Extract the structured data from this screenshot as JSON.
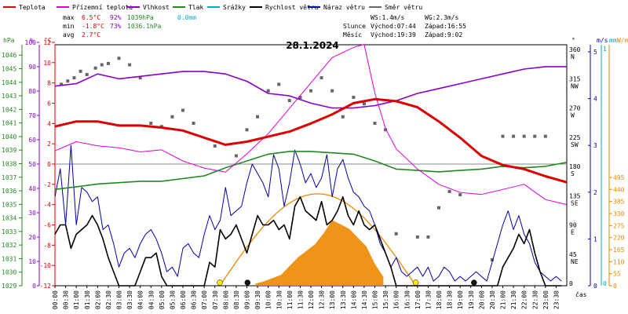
{
  "chart_data": {
    "type": "line",
    "title": "28.1.2024",
    "legend": [
      {
        "label": "Teplota",
        "color": "#dd0000"
      },
      {
        "label": "Přízemní teplota",
        "color": "#dd00dd"
      },
      {
        "label": "Vlhkost",
        "color": "#8800cc"
      },
      {
        "label": "Tlak",
        "color": "#228822"
      },
      {
        "label": "Srážky",
        "color": "#00aacc"
      },
      {
        "label": "Rychlost větru",
        "color": "#000000"
      },
      {
        "label": "Náraz větru",
        "color": "#0000aa"
      },
      {
        "label": "Směr větru",
        "color": "#666666"
      }
    ],
    "stats": {
      "max_label": "max",
      "max_temp": "6.5°C",
      "max_hum": "92%",
      "max_press": "1039hPa",
      "rain": "0.0mm",
      "min_label": "min",
      "min_temp": "-1.8°C",
      "min_hum": "73%",
      "min_press": "1036.1hPa",
      "avg_label": "avg",
      "avg_temp": "2.7°C",
      "ws": "WS:1.4m/s",
      "wg": "WG:2.3m/s",
      "sun_label": "Slunce",
      "sun_rise": "Východ:07:44",
      "sun_set": "Západ:16:55",
      "moon_label": "Měsíc",
      "moon_rise": "Východ:19:39",
      "moon_set": "Západ:9:02"
    },
    "axes": {
      "hpa_label": "hPa",
      "pct_label": "%",
      "temp_label": "°C",
      "deg_label": "°",
      "ms_label": "m/s",
      "mm_label": "mm",
      "wm2_label": "W/m²",
      "time_label": "čas",
      "hpa_ticks": [
        "1046",
        "1045",
        "1044",
        "1043",
        "1042",
        "1041",
        "1040",
        "1039",
        "1038",
        "1037",
        "1036",
        "1035",
        "1034",
        "1033",
        "1032",
        "1031",
        "1030",
        "1029"
      ],
      "pct_ticks": [
        "100",
        "90",
        "80",
        "70",
        "60",
        "50",
        "40",
        "30",
        "20",
        "10",
        "0"
      ],
      "temp_ticks": [
        "12",
        "10",
        "8",
        "6",
        "4",
        "2",
        "0",
        "-2",
        "-4",
        "-6",
        "-8",
        "-10",
        "-12"
      ],
      "dir_ticks": [
        [
          "360",
          "N"
        ],
        [
          "315",
          "NW"
        ],
        [
          "270",
          "W"
        ],
        [
          "225",
          "SW"
        ],
        [
          "180",
          "S"
        ],
        [
          "135",
          "SE"
        ],
        [
          "90",
          "E"
        ],
        [
          "45",
          "NE"
        ],
        [
          "0",
          ""
        ]
      ],
      "ms_ticks": [
        "5",
        "4",
        "3",
        "2",
        "1",
        "0"
      ],
      "mm_ticks": [
        "1",
        "0"
      ],
      "wm2_ticks": [
        "495",
        "440",
        "385",
        "330",
        "275",
        "220",
        "165",
        "110",
        "55",
        "0"
      ],
      "hpa_range": [
        1029,
        1046.5
      ],
      "temp_range": [
        -12,
        12
      ],
      "time_ticks": [
        "00:00",
        "00:30",
        "01:00",
        "01:30",
        "02:00",
        "02:30",
        "03:00",
        "03:30",
        "04:00",
        "04:30",
        "05:00",
        "05:30",
        "06:00",
        "06:30",
        "07:00",
        "07:30",
        "08:00",
        "08:30",
        "09:00",
        "09:30",
        "10:00",
        "10:30",
        "11:00",
        "11:30",
        "12:00",
        "12:30",
        "13:00",
        "13:30",
        "14:00",
        "14:30",
        "15:00",
        "15:30",
        "16:00",
        "16:30",
        "17:00",
        "17:30",
        "18:00",
        "18:30",
        "19:00",
        "19:30",
        "20:00",
        "20:30",
        "21:00",
        "21:30",
        "22:00",
        "22:30",
        "23:00",
        "23:30"
      ]
    },
    "series": [
      {
        "name": "Teplota",
        "unit": "°C",
        "x": [
          0,
          1,
          2,
          3,
          4,
          5,
          6,
          7,
          8,
          9,
          10,
          11,
          12,
          13,
          14,
          15,
          16,
          17,
          18,
          19,
          20,
          21,
          22,
          23,
          24
        ],
        "values": [
          3.7,
          4.2,
          4.2,
          3.8,
          3.8,
          3.6,
          3.3,
          2.6,
          1.9,
          2.2,
          2.7,
          3.2,
          4.0,
          4.9,
          6.0,
          6.4,
          6.2,
          5.6,
          4.2,
          2.6,
          0.8,
          -0.1,
          -0.5,
          -1.2,
          -1.8
        ]
      },
      {
        "name": "Přízemní teplota",
        "unit": "°C",
        "x": [
          0,
          1,
          2,
          3,
          4,
          5,
          6,
          7,
          8,
          9,
          10,
          11,
          12,
          13,
          14,
          14.5,
          15,
          15.5,
          16,
          17,
          18,
          19,
          20,
          21,
          22,
          23,
          24
        ],
        "values": [
          1.3,
          2.2,
          1.8,
          1.6,
          1.2,
          1.4,
          0.3,
          -0.4,
          -0.8,
          1.0,
          3.0,
          5.5,
          8.0,
          10.5,
          11.5,
          11.8,
          7.0,
          3.5,
          1.5,
          -0.5,
          -2.0,
          -2.8,
          -3.0,
          -2.5,
          -2.0,
          -3.5,
          -4.0
        ]
      },
      {
        "name": "Vlhkost",
        "unit": "%",
        "x": [
          0,
          1,
          2,
          3,
          4,
          5,
          6,
          7,
          8,
          9,
          10,
          11,
          12,
          13,
          14,
          15,
          16,
          17,
          18,
          19,
          20,
          21,
          22,
          23,
          24
        ],
        "values": [
          82,
          83,
          87,
          85,
          86,
          87,
          88,
          88,
          87,
          84,
          79,
          78,
          75,
          73,
          73,
          74,
          76,
          79,
          81,
          83,
          85,
          87,
          89,
          90,
          90
        ]
      },
      {
        "name": "Tlak",
        "unit": "hPa",
        "x": [
          0,
          1,
          2,
          3,
          4,
          5,
          6,
          7,
          8,
          9,
          10,
          11,
          12,
          13,
          14,
          15,
          16,
          17,
          18,
          19,
          20,
          21,
          22,
          23,
          24
        ],
        "values": [
          1036.1,
          1036.3,
          1036.5,
          1036.6,
          1036.7,
          1036.7,
          1036.9,
          1037.1,
          1037.7,
          1038.2,
          1038.7,
          1038.9,
          1038.9,
          1038.8,
          1038.7,
          1038.2,
          1037.6,
          1037.5,
          1037.4,
          1037.5,
          1037.6,
          1037.8,
          1037.7,
          1037.8,
          1038.1
        ]
      },
      {
        "name": "Směr větru",
        "unit": "°",
        "x": [
          0.3,
          0.6,
          0.9,
          1.2,
          1.5,
          1.9,
          2.2,
          2.5,
          3.0,
          3.5,
          4.0,
          4.5,
          5.0,
          5.5,
          6.0,
          6.5,
          7.5,
          8.5,
          9.0,
          9.5,
          10.0,
          10.5,
          11.0,
          11.5,
          12.0,
          12.5,
          13.0,
          13.5,
          14.0,
          14.5,
          15.0,
          15.5,
          16.0,
          17.0,
          17.5,
          18.0,
          18.5,
          19.0,
          20.5,
          21.0,
          21.5,
          22.0,
          22.5,
          23.0
        ],
        "values": [
          310,
          315,
          320,
          330,
          325,
          335,
          340,
          342,
          350,
          340,
          320,
          250,
          245,
          260,
          270,
          250,
          215,
          200,
          240,
          260,
          300,
          310,
          285,
          290,
          300,
          320,
          300,
          260,
          290,
          280,
          250,
          240,
          80,
          75,
          75,
          120,
          145,
          140,
          40,
          230,
          230,
          230,
          230,
          230
        ]
      }
    ],
    "wind_speed": {
      "unit": "m/s",
      "range": [
        0,
        5
      ],
      "x_step_h": 0.25,
      "values": [
        1.1,
        1.3,
        1.3,
        0.8,
        1.1,
        1.2,
        1.3,
        1.5,
        1.3,
        1.0,
        0.6,
        0.3,
        0,
        0,
        0,
        0,
        0.3,
        0.6,
        0.6,
        0.7,
        0.2,
        0,
        0,
        0,
        0,
        0,
        0,
        0,
        0,
        0.5,
        0.4,
        1.2,
        1.0,
        1.1,
        1.3,
        1.0,
        0.7,
        1.1,
        1.5,
        1.3,
        1.3,
        1.4,
        1.2,
        1.3,
        1.0,
        1.7,
        1.9,
        1.6,
        1.5,
        1.4,
        1.8,
        1.3,
        1.4,
        1.6,
        1.9,
        1.5,
        1.3,
        1.6,
        1.3,
        1.2,
        1.3,
        1.0,
        0.7,
        0.4,
        0,
        0,
        0,
        0,
        0,
        0,
        0,
        0,
        0,
        0,
        0,
        0,
        0,
        0,
        0,
        0,
        0,
        0,
        0,
        0,
        0.4,
        0.6,
        0.8,
        1.1,
        0.9,
        1.2,
        0.7,
        0.3,
        0,
        0,
        0,
        0
      ]
    },
    "wind_gust": {
      "unit": "m/s",
      "range": [
        0,
        5
      ],
      "x_step_h": 0.25,
      "values": [
        1.9,
        2.5,
        1.3,
        3.0,
        1.3,
        2.1,
        2.0,
        1.8,
        1.9,
        1.2,
        1.3,
        0.9,
        0.4,
        0.7,
        0.8,
        0.6,
        0.9,
        1.1,
        1.2,
        1.0,
        0.7,
        0.3,
        0.4,
        0.2,
        0.8,
        0.9,
        0.7,
        0.6,
        1.1,
        1.5,
        1.2,
        1.4,
        2.1,
        1.5,
        1.6,
        1.7,
        2.2,
        2.6,
        2.4,
        2.2,
        1.9,
        2.8,
        2.5,
        1.7,
        2.2,
        2.9,
        2.6,
        2.2,
        2.4,
        2.1,
        2.3,
        2.8,
        1.9,
        2.5,
        2.7,
        2.3,
        2.0,
        1.9,
        1.7,
        1.6,
        1.3,
        0.9,
        0.7,
        0.4,
        0.6,
        0.3,
        0.2,
        0.3,
        0.4,
        0.2,
        0.4,
        0.1,
        0.2,
        0.4,
        0.3,
        0.1,
        0.2,
        0.1,
        0.2,
        0.3,
        0.2,
        0.1,
        0.5,
        0.9,
        1.3,
        1.6,
        1.2,
        1.5,
        1.1,
        0.9,
        0.5,
        0.3,
        0.2,
        0.1,
        0.2,
        0.1
      ]
    },
    "solar": {
      "unit": "W/m²",
      "range": [
        0,
        495
      ],
      "theoretical_max": 420,
      "sunrise_h": 7.73,
      "sunset_h": 16.92,
      "measured_x": [
        9.4,
        9.8,
        10.2,
        10.6,
        11.0,
        11.4,
        11.8,
        12.2,
        12.6,
        13.0,
        13.4,
        13.8,
        14.2,
        14.6,
        15.0,
        15.4
      ],
      "measured_values": [
        10,
        20,
        35,
        50,
        90,
        130,
        160,
        190,
        240,
        300,
        280,
        260,
        220,
        180,
        100,
        40
      ]
    },
    "markers": [
      {
        "type": "sunrise",
        "color": "#ffee00",
        "x_h": 7.73
      },
      {
        "type": "moonset",
        "color": "#111111",
        "x_h": 9.03
      },
      {
        "type": "sunset",
        "color": "#ffee00",
        "x_h": 16.92
      },
      {
        "type": "moonrise",
        "color": "#111111",
        "x_h": 19.65
      }
    ],
    "colors": {
      "temp": "#dd0000",
      "feels": "#dd00dd",
      "hum": "#8800cc",
      "press": "#228822",
      "rain": "#00aacc",
      "wind": "#000000",
      "gust": "#0000aa",
      "dir": "#666666",
      "solar": "#ee8800"
    }
  }
}
